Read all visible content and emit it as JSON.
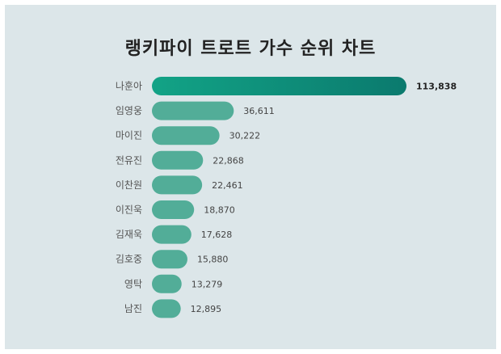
{
  "chart_data": {
    "type": "bar",
    "orientation": "horizontal",
    "title": "랭키파이 트로트 가수 순위 차트",
    "categories": [
      "나훈아",
      "임영웅",
      "마이진",
      "전유진",
      "이찬원",
      "이진욱",
      "김재욱",
      "김호중",
      "영탁",
      "남진"
    ],
    "values": [
      113838,
      36611,
      30222,
      22868,
      22461,
      18870,
      17628,
      15880,
      13279,
      12895
    ],
    "value_labels": [
      "113,838",
      "36,611",
      "30,222",
      "22,868",
      "22,461",
      "18,870",
      "17,628",
      "15,880",
      "13,279",
      "12,895"
    ],
    "grid": false,
    "legend": "none",
    "colors": {
      "top_start": "#12a386",
      "top_end": "#0b7a6e",
      "bar": "#52ad98",
      "background": "#dce6e9"
    }
  }
}
